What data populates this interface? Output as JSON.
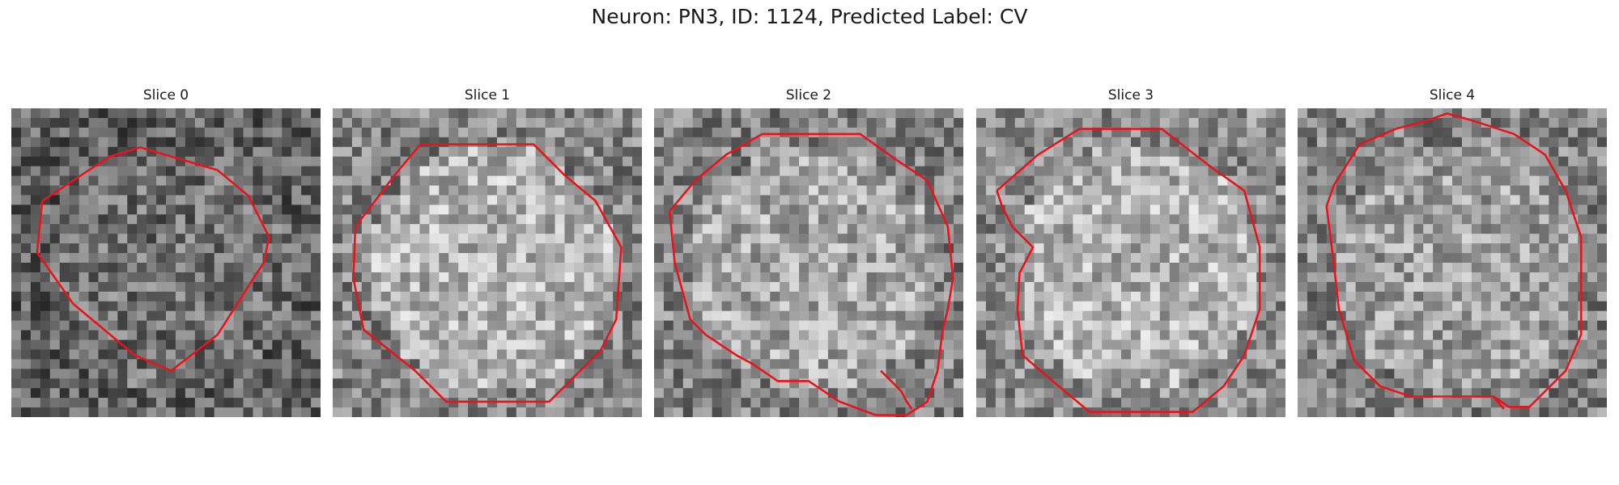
{
  "figure": {
    "title": "Neuron: PN3, ID: 1124, Predicted Label: CV"
  },
  "panels": [
    {
      "title": "Slice 0",
      "brightness": 0.4,
      "blob": 0.04,
      "contour_color": "#e8141c"
    },
    {
      "title": "Slice 1",
      "brightness": 0.58,
      "blob": 0.12,
      "contour_color": "#e8141c"
    },
    {
      "title": "Slice 2",
      "brightness": 0.56,
      "blob": 0.1,
      "contour_color": "#e8141c"
    },
    {
      "title": "Slice 3",
      "brightness": 0.6,
      "blob": 0.1,
      "contour_color": "#e8141c"
    },
    {
      "title": "Slice 4",
      "brightness": 0.55,
      "blob": 0.08,
      "contour_color": "#e8141c"
    }
  ],
  "image": {
    "grid": 32,
    "colormap": "gray"
  }
}
